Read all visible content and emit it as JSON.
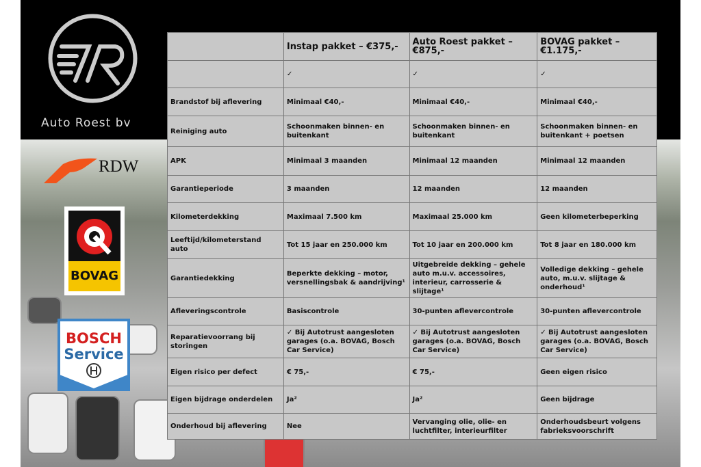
{
  "brand": {
    "name": "Auto Roest bv",
    "logo_text": "7R"
  },
  "logos": {
    "rdw": "RDW",
    "bovag": "BOVAG",
    "bosch_line1": "BOSCH",
    "bosch_line2": "Service"
  },
  "table": {
    "headers": [
      "",
      "Instap pakket – €375,-",
      "Auto Roest pakket – €875,-",
      "BOVAG pakket – €1.175,-"
    ],
    "rows": [
      [
        "",
        "✓",
        "✓",
        "✓"
      ],
      [
        "Brandstof bij aflevering",
        "Minimaal €40,-",
        "Minimaal €40,-",
        "Minimaal €40,-"
      ],
      [
        "Reiniging auto",
        "Schoonmaken binnen- en buitenkant",
        "Schoonmaken binnen- en buitenkant",
        "Schoonmaken binnen- en buitenkant + poetsen"
      ],
      [
        "APK",
        "Minimaal 3 maanden",
        "Minimaal 12 maanden",
        "Minimaal 12 maanden"
      ],
      [
        "Garantieperiode",
        "3 maanden",
        "12 maanden",
        "12 maanden"
      ],
      [
        "Kilometerdekking",
        "Maximaal 7.500 km",
        "Maximaal 25.000 km",
        "Geen kilometerbeperking"
      ],
      [
        "Leeftijd/kilometerstand auto",
        "Tot 15 jaar en 250.000 km",
        "Tot 10 jaar en 200.000 km",
        "Tot 8 jaar en 180.000 km"
      ],
      [
        "Garantiedekking",
        "Beperkte dekking – motor, versnellingsbak & aandrijving¹",
        "Uitgebreide dekking – gehele auto m.u.v. accessoires, interieur, carrosserie & slijtage¹",
        "Volledige dekking – gehele auto, m.u.v. slijtage & onderhoud¹"
      ],
      [
        "Afleveringscontrole",
        "Basiscontrole",
        "30-punten aflevercontrole",
        "30-punten aflevercontrole"
      ],
      [
        "Reparatievoorrang bij storingen",
        "✓ Bij Autotrust aangesloten garages (o.a. BOVAG, Bosch Car Service)",
        "✓ Bij Autotrust aangesloten garages (o.a. BOVAG, Bosch Car Service)",
        "✓ Bij Autotrust aangesloten garages (o.a. BOVAG, Bosch Car Service)"
      ],
      [
        "Eigen risico per defect",
        "€ 75,-",
        "€ 75,-",
        "Geen eigen risico"
      ],
      [
        "Eigen bijdrage onderdelen",
        "Ja²",
        "Ja²",
        "Geen bijdrage"
      ],
      [
        "Onderhoud bij aflevering",
        "Nee",
        "Vervanging olie, olie- en luchtfilter, interieurfilter",
        "Onderhoudsbeurt volgens fabrieksvoorschrift"
      ]
    ]
  }
}
